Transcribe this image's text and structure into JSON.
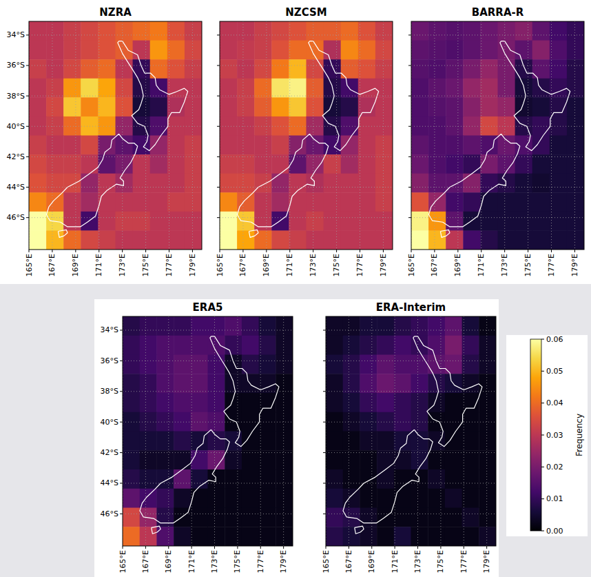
{
  "chart_data": [
    {
      "type": "heatmap",
      "title": "NZRA",
      "xlim": [
        165,
        179.8
      ],
      "ylim": [
        -48.1,
        -33.1
      ],
      "grid": true,
      "xticks": [
        {
          "value": 165,
          "label": "165°E"
        },
        {
          "value": 167,
          "label": "167°E"
        },
        {
          "value": 169,
          "label": "169°E"
        },
        {
          "value": 171,
          "label": "171°E"
        },
        {
          "value": 173,
          "label": "173°E"
        },
        {
          "value": 175,
          "label": "175°E"
        },
        {
          "value": 177,
          "label": "177°E"
        },
        {
          "value": 179,
          "label": "179°E"
        }
      ],
      "yticks": [
        {
          "value": -34,
          "label": "34°S"
        },
        {
          "value": -36,
          "label": "36°S"
        },
        {
          "value": -38,
          "label": "38°S"
        },
        {
          "value": -40,
          "label": "40°S"
        },
        {
          "value": -42,
          "label": "42°S"
        },
        {
          "value": -44,
          "label": "44°S"
        },
        {
          "value": -46,
          "label": "46°S"
        }
      ],
      "cells": [
        [
          0.03,
          0.03,
          0.032,
          0.034,
          0.036,
          0.038,
          0.04,
          0.042,
          0.036,
          0.032
        ],
        [
          0.03,
          0.03,
          0.032,
          0.034,
          0.036,
          0.038,
          0.03,
          0.046,
          0.04,
          0.034
        ],
        [
          0.032,
          0.03,
          0.034,
          0.038,
          0.04,
          0.03,
          0.01,
          0.04,
          0.036,
          0.032
        ],
        [
          0.03,
          0.032,
          0.046,
          0.054,
          0.048,
          0.034,
          0.008,
          0.012,
          0.03,
          0.03
        ],
        [
          0.03,
          0.034,
          0.052,
          0.044,
          0.05,
          0.036,
          0.006,
          0.008,
          0.028,
          0.03
        ],
        [
          0.03,
          0.032,
          0.04,
          0.05,
          0.046,
          0.024,
          0.008,
          0.014,
          0.03,
          0.03
        ],
        [
          0.032,
          0.03,
          0.03,
          0.034,
          0.02,
          0.016,
          0.012,
          0.024,
          0.03,
          0.032
        ],
        [
          0.034,
          0.032,
          0.032,
          0.03,
          0.016,
          0.02,
          0.03,
          0.026,
          0.03,
          0.032
        ],
        [
          0.036,
          0.034,
          0.034,
          0.024,
          0.03,
          0.026,
          0.03,
          0.03,
          0.03,
          0.032
        ],
        [
          0.044,
          0.04,
          0.03,
          0.026,
          0.03,
          0.03,
          0.03,
          0.03,
          0.032,
          0.032
        ],
        [
          0.06,
          0.054,
          0.03,
          0.012,
          0.03,
          0.032,
          0.032,
          0.03,
          0.03,
          0.03
        ],
        [
          0.06,
          0.05,
          0.04,
          0.034,
          0.032,
          0.03,
          0.03,
          0.03,
          0.03,
          0.03
        ]
      ]
    },
    {
      "type": "heatmap",
      "title": "NZCSM",
      "xlim": [
        165,
        179.8
      ],
      "ylim": [
        -48.1,
        -33.1
      ],
      "grid": true,
      "tick_labels": "x",
      "xticks": [
        {
          "value": 165,
          "label": "165°E"
        },
        {
          "value": 167,
          "label": "167°E"
        },
        {
          "value": 169,
          "label": "169°E"
        },
        {
          "value": 171,
          "label": "171°E"
        },
        {
          "value": 173,
          "label": "173°E"
        },
        {
          "value": 175,
          "label": "175°E"
        },
        {
          "value": 177,
          "label": "177°E"
        },
        {
          "value": 179,
          "label": "179°E"
        }
      ],
      "yticks": [
        -34,
        -36,
        -38,
        -40,
        -42,
        -44,
        -46
      ],
      "cells": [
        [
          0.03,
          0.03,
          0.032,
          0.034,
          0.036,
          0.038,
          0.038,
          0.04,
          0.036,
          0.032
        ],
        [
          0.03,
          0.031,
          0.032,
          0.036,
          0.04,
          0.04,
          0.028,
          0.044,
          0.04,
          0.034
        ],
        [
          0.032,
          0.03,
          0.034,
          0.042,
          0.05,
          0.034,
          0.01,
          0.038,
          0.036,
          0.032
        ],
        [
          0.03,
          0.032,
          0.04,
          0.056,
          0.058,
          0.038,
          0.008,
          0.012,
          0.03,
          0.03
        ],
        [
          0.03,
          0.032,
          0.038,
          0.046,
          0.052,
          0.036,
          0.006,
          0.008,
          0.028,
          0.03
        ],
        [
          0.03,
          0.03,
          0.032,
          0.036,
          0.04,
          0.026,
          0.008,
          0.014,
          0.03,
          0.03
        ],
        [
          0.03,
          0.03,
          0.03,
          0.032,
          0.022,
          0.018,
          0.012,
          0.024,
          0.03,
          0.032
        ],
        [
          0.032,
          0.032,
          0.03,
          0.03,
          0.016,
          0.024,
          0.032,
          0.026,
          0.03,
          0.032
        ],
        [
          0.034,
          0.034,
          0.032,
          0.024,
          0.03,
          0.028,
          0.03,
          0.03,
          0.03,
          0.032
        ],
        [
          0.044,
          0.038,
          0.03,
          0.026,
          0.03,
          0.03,
          0.03,
          0.03,
          0.03,
          0.032
        ],
        [
          0.06,
          0.052,
          0.03,
          0.012,
          0.03,
          0.032,
          0.03,
          0.03,
          0.03,
          0.03
        ],
        [
          0.06,
          0.048,
          0.04,
          0.034,
          0.032,
          0.03,
          0.03,
          0.03,
          0.03,
          0.03
        ]
      ]
    },
    {
      "type": "heatmap",
      "title": "BARRA-R",
      "xlim": [
        165,
        179.8
      ],
      "ylim": [
        -48.1,
        -33.1
      ],
      "grid": true,
      "tick_labels": "x",
      "xticks": [
        {
          "value": 165,
          "label": "165°E"
        },
        {
          "value": 167,
          "label": "167°E"
        },
        {
          "value": 169,
          "label": "169°E"
        },
        {
          "value": 171,
          "label": "171°E"
        },
        {
          "value": 173,
          "label": "173°E"
        },
        {
          "value": 175,
          "label": "175°E"
        },
        {
          "value": 177,
          "label": "177°E"
        },
        {
          "value": 179,
          "label": "179°E"
        }
      ],
      "yticks": [
        -34,
        -36,
        -38,
        -40,
        -42,
        -44,
        -46
      ],
      "cells": [
        [
          0.018,
          0.016,
          0.015,
          0.016,
          0.018,
          0.02,
          0.022,
          0.016,
          0.012,
          0.01
        ],
        [
          0.016,
          0.015,
          0.014,
          0.016,
          0.018,
          0.02,
          0.016,
          0.022,
          0.014,
          0.01
        ],
        [
          0.015,
          0.014,
          0.016,
          0.02,
          0.024,
          0.02,
          0.008,
          0.016,
          0.012,
          0.008
        ],
        [
          0.014,
          0.016,
          0.018,
          0.024,
          0.026,
          0.02,
          0.006,
          0.008,
          0.01,
          0.008
        ],
        [
          0.014,
          0.015,
          0.016,
          0.022,
          0.026,
          0.024,
          0.005,
          0.006,
          0.008,
          0.006
        ],
        [
          0.014,
          0.014,
          0.016,
          0.024,
          0.034,
          0.03,
          0.008,
          0.01,
          0.008,
          0.006
        ],
        [
          0.016,
          0.014,
          0.014,
          0.016,
          0.014,
          0.018,
          0.014,
          0.01,
          0.006,
          0.006
        ],
        [
          0.018,
          0.014,
          0.012,
          0.01,
          0.02,
          0.016,
          0.01,
          0.006,
          0.006,
          0.006
        ],
        [
          0.022,
          0.016,
          0.016,
          0.022,
          0.01,
          0.008,
          0.006,
          0.005,
          0.006,
          0.006
        ],
        [
          0.036,
          0.024,
          0.012,
          0.01,
          0.006,
          0.006,
          0.006,
          0.006,
          0.006,
          0.006
        ],
        [
          0.058,
          0.046,
          0.016,
          0.006,
          0.006,
          0.006,
          0.006,
          0.006,
          0.006,
          0.006
        ],
        [
          0.06,
          0.05,
          0.03,
          0.012,
          0.008,
          0.006,
          0.006,
          0.006,
          0.006,
          0.006
        ]
      ]
    },
    {
      "type": "heatmap",
      "title": "ERA5",
      "xlim": [
        165,
        179.8
      ],
      "ylim": [
        -48.1,
        -33.1
      ],
      "grid": true,
      "xticks": [
        {
          "value": 165,
          "label": "165°E"
        },
        {
          "value": 167,
          "label": "167°E"
        },
        {
          "value": 169,
          "label": "169°E"
        },
        {
          "value": 171,
          "label": "171°E"
        },
        {
          "value": 173,
          "label": "173°E"
        },
        {
          "value": 175,
          "label": "175°E"
        },
        {
          "value": 177,
          "label": "177°E"
        },
        {
          "value": 179,
          "label": "179°E"
        }
      ],
      "yticks": [
        {
          "value": -34,
          "label": "34°S"
        },
        {
          "value": -36,
          "label": "36°S"
        },
        {
          "value": -38,
          "label": "38°S"
        },
        {
          "value": -40,
          "label": "40°S"
        },
        {
          "value": -42,
          "label": "42°S"
        },
        {
          "value": -44,
          "label": "44°S"
        },
        {
          "value": -46,
          "label": "46°S"
        }
      ],
      "cells": [
        [
          0.008,
          0.01,
          0.01,
          0.01,
          0.012,
          0.012,
          0.014,
          0.01,
          0.006,
          0.004
        ],
        [
          0.01,
          0.012,
          0.014,
          0.014,
          0.014,
          0.014,
          0.01,
          0.012,
          0.008,
          0.004
        ],
        [
          0.01,
          0.012,
          0.014,
          0.016,
          0.016,
          0.012,
          0.004,
          0.008,
          0.006,
          0.004
        ],
        [
          0.008,
          0.01,
          0.014,
          0.016,
          0.016,
          0.012,
          0.004,
          0.004,
          0.004,
          0.002
        ],
        [
          0.008,
          0.01,
          0.012,
          0.014,
          0.014,
          0.012,
          0.002,
          0.002,
          0.002,
          0.002
        ],
        [
          0.006,
          0.008,
          0.01,
          0.012,
          0.016,
          0.014,
          0.002,
          0.002,
          0.002,
          0.002
        ],
        [
          0.006,
          0.006,
          0.006,
          0.008,
          0.006,
          0.008,
          0.006,
          0.002,
          0.002,
          0.002
        ],
        [
          0.006,
          0.004,
          0.004,
          0.004,
          0.012,
          0.018,
          0.004,
          0.002,
          0.002,
          0.002
        ],
        [
          0.008,
          0.006,
          0.006,
          0.016,
          0.006,
          0.002,
          0.002,
          0.002,
          0.002,
          0.002
        ],
        [
          0.016,
          0.012,
          0.01,
          0.004,
          0.002,
          0.002,
          0.002,
          0.002,
          0.002,
          0.002
        ],
        [
          0.034,
          0.024,
          0.008,
          0.002,
          0.002,
          0.002,
          0.002,
          0.002,
          0.002,
          0.002
        ],
        [
          0.04,
          0.03,
          0.014,
          0.004,
          0.002,
          0.002,
          0.002,
          0.002,
          0.002,
          0.002
        ]
      ]
    },
    {
      "type": "heatmap",
      "title": "ERA-Interim",
      "xlim": [
        165,
        179.8
      ],
      "ylim": [
        -48.1,
        -33.1
      ],
      "grid": true,
      "tick_labels": "x",
      "xticks": [
        {
          "value": 165,
          "label": "165°E"
        },
        {
          "value": 167,
          "label": "167°E"
        },
        {
          "value": 169,
          "label": "169°E"
        },
        {
          "value": 171,
          "label": "171°E"
        },
        {
          "value": 173,
          "label": "173°E"
        },
        {
          "value": 175,
          "label": "175°E"
        },
        {
          "value": 177,
          "label": "177°E"
        },
        {
          "value": 179,
          "label": "179°E"
        }
      ],
      "yticks": [
        -34,
        -36,
        -38,
        -40,
        -42,
        -44,
        -46
      ],
      "cells": [
        [
          0.004,
          0.004,
          0.006,
          0.006,
          0.008,
          0.01,
          0.012,
          0.016,
          0.006,
          0.002
        ],
        [
          0.004,
          0.006,
          0.008,
          0.01,
          0.012,
          0.01,
          0.014,
          0.02,
          0.01,
          0.004
        ],
        [
          0.006,
          0.008,
          0.012,
          0.016,
          0.014,
          0.014,
          0.016,
          0.018,
          0.008,
          0.004
        ],
        [
          0.004,
          0.008,
          0.014,
          0.018,
          0.016,
          0.012,
          0.008,
          0.006,
          0.004,
          0.002
        ],
        [
          0.004,
          0.006,
          0.01,
          0.012,
          0.01,
          0.008,
          0.004,
          0.002,
          0.002,
          0.002
        ],
        [
          0.002,
          0.004,
          0.006,
          0.008,
          0.01,
          0.008,
          0.002,
          0.002,
          0.002,
          0.002
        ],
        [
          0.002,
          0.002,
          0.004,
          0.004,
          0.006,
          0.006,
          0.004,
          0.002,
          0.002,
          0.002
        ],
        [
          0.002,
          0.002,
          0.002,
          0.004,
          0.004,
          0.006,
          0.002,
          0.002,
          0.002,
          0.002
        ],
        [
          0.004,
          0.002,
          0.002,
          0.004,
          0.002,
          0.002,
          0.004,
          0.002,
          0.002,
          0.002
        ],
        [
          0.006,
          0.004,
          0.002,
          0.002,
          0.002,
          0.002,
          0.002,
          0.004,
          0.002,
          0.002
        ],
        [
          0.01,
          0.008,
          0.004,
          0.002,
          0.002,
          0.002,
          0.002,
          0.002,
          0.004,
          0.002
        ],
        [
          0.008,
          0.006,
          0.004,
          0.002,
          0.006,
          0.002,
          0.002,
          0.002,
          0.002,
          0.004
        ]
      ]
    }
  ],
  "colorbar": {
    "label": "Frequency",
    "range": [
      0,
      0.06
    ],
    "ticks": [
      {
        "value": 0,
        "label": "0.00"
      },
      0.01,
      0.02,
      0.03,
      0.04,
      0.05,
      0.06
    ]
  },
  "coastline": {
    "north_island": {
      "lon": [
        172.7,
        173.0,
        173.5,
        174.3,
        174.6,
        174.9,
        175.4,
        175.8,
        175.9,
        176.2,
        177.0,
        177.7,
        178.3,
        178.6,
        178.3,
        177.9,
        177.2,
        176.9,
        176.9,
        176.3,
        175.8,
        175.3,
        174.8,
        175.1,
        175.2,
        174.9,
        174.3,
        173.8,
        174.4,
        174.6,
        174.8,
        174.6,
        174.3,
        173.9,
        173.4,
        173.0,
        172.6,
        172.7
      ],
      "lat": [
        -34.4,
        -34.4,
        -35.0,
        -35.3,
        -36.0,
        -36.5,
        -36.5,
        -36.8,
        -37.3,
        -37.6,
        -37.9,
        -37.7,
        -37.5,
        -37.7,
        -38.4,
        -39.1,
        -39.1,
        -39.5,
        -40.0,
        -40.6,
        -41.2,
        -41.6,
        -41.35,
        -41.0,
        -40.6,
        -40.0,
        -39.8,
        -39.3,
        -38.9,
        -38.5,
        -38.0,
        -37.3,
        -36.8,
        -36.3,
        -35.7,
        -35.2,
        -34.5,
        -34.4
      ]
    },
    "south_island": {
      "lon": [
        172.7,
        173.0,
        173.5,
        174.0,
        174.3,
        174.1,
        173.7,
        173.2,
        172.8,
        173.1,
        173.1,
        172.5,
        171.7,
        171.2,
        171.0,
        170.7,
        170.0,
        169.4,
        168.8,
        168.3,
        167.7,
        166.8,
        166.5,
        166.7,
        167.1,
        167.8,
        168.3,
        169.3,
        170.2,
        170.9,
        171.3,
        171.5,
        172.0,
        172.1,
        172.7
      ],
      "lat": [
        -40.5,
        -40.8,
        -41.1,
        -41.1,
        -41.3,
        -41.8,
        -42.4,
        -42.9,
        -43.4,
        -43.6,
        -43.9,
        -43.8,
        -44.2,
        -44.6,
        -45.2,
        -45.9,
        -46.3,
        -46.6,
        -46.6,
        -46.6,
        -46.3,
        -46.2,
        -45.8,
        -45.3,
        -44.9,
        -44.4,
        -44.0,
        -43.6,
        -43.1,
        -42.7,
        -42.2,
        -41.7,
        -41.4,
        -40.9,
        -40.5
      ]
    },
    "stewart_island": {
      "lon": [
        167.5,
        168.2,
        168.3,
        168.0,
        167.6,
        167.5
      ],
      "lat": [
        -46.9,
        -46.8,
        -47.0,
        -47.2,
        -47.3,
        -46.9
      ]
    }
  }
}
